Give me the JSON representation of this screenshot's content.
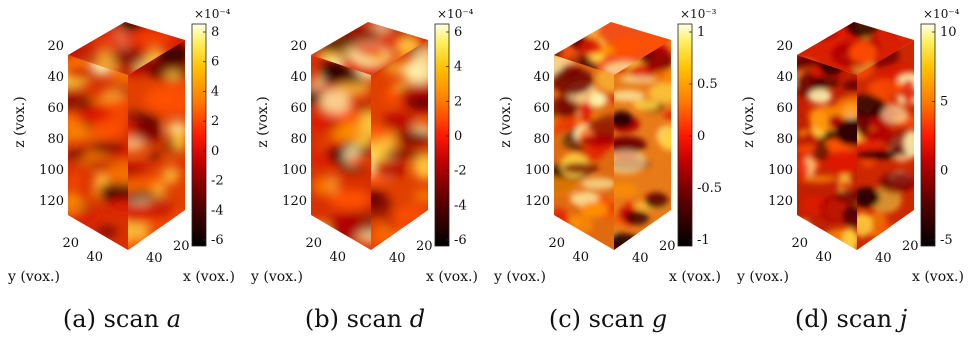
{
  "panels": [
    {
      "id": "a",
      "caption_prefix": "(a) scan",
      "caption_var": "a",
      "z_ticks": [
        "20",
        "40",
        "60",
        "80",
        "100",
        "120"
      ],
      "y_ticks": [
        "20",
        "40"
      ],
      "x_ticks": [
        "40",
        "20"
      ],
      "z_label": "z (vox.)",
      "y_label": "y (vox.)",
      "x_label": "x (vox.)",
      "colorbar": {
        "exponent": "×10⁻⁴",
        "ticks": [
          "8",
          "6",
          "4",
          "2",
          "0",
          "-2",
          "-4",
          "-6"
        ]
      },
      "style": "sharp"
    },
    {
      "id": "d",
      "caption_prefix": "(b) scan",
      "caption_var": "d",
      "z_ticks": [
        "20",
        "40",
        "60",
        "80",
        "100",
        "120"
      ],
      "y_ticks": [
        "20",
        "40"
      ],
      "x_ticks": [
        "40",
        "20"
      ],
      "z_label": "z (vox.)",
      "y_label": "y (vox.)",
      "x_label": "x (vox.)",
      "colorbar": {
        "exponent": "×10⁻⁴",
        "ticks": [
          "6",
          "4",
          "2",
          "0",
          "-2",
          "-4",
          "-6"
        ]
      },
      "style": "sharp"
    },
    {
      "id": "g",
      "caption_prefix": "(c) scan",
      "caption_var": "g",
      "z_ticks": [
        "20",
        "40",
        "60",
        "80",
        "100",
        "120"
      ],
      "y_ticks": [
        "20",
        "40"
      ],
      "x_ticks": [
        "40",
        "20"
      ],
      "z_label": "z (vox.)",
      "y_label": "y (vox.)",
      "x_label": "x (vox.)",
      "colorbar": {
        "exponent": "×10⁻³",
        "ticks": [
          "1",
          "0.5",
          "0",
          "-0.5",
          "-1"
        ]
      },
      "style": "blocky"
    },
    {
      "id": "j",
      "caption_prefix": "(d) scan",
      "caption_var": "j",
      "z_ticks": [
        "20",
        "40",
        "60",
        "80",
        "100",
        "120"
      ],
      "y_ticks": [
        "20",
        "40"
      ],
      "x_ticks": [
        "40",
        "20"
      ],
      "z_label": "z (vox.)",
      "y_label": "y (vox.)",
      "x_label": "x (vox.)",
      "colorbar": {
        "exponent": "×10⁻⁴",
        "ticks": [
          "10",
          "5",
          "0",
          "-5"
        ]
      },
      "style": "blocky"
    }
  ]
}
